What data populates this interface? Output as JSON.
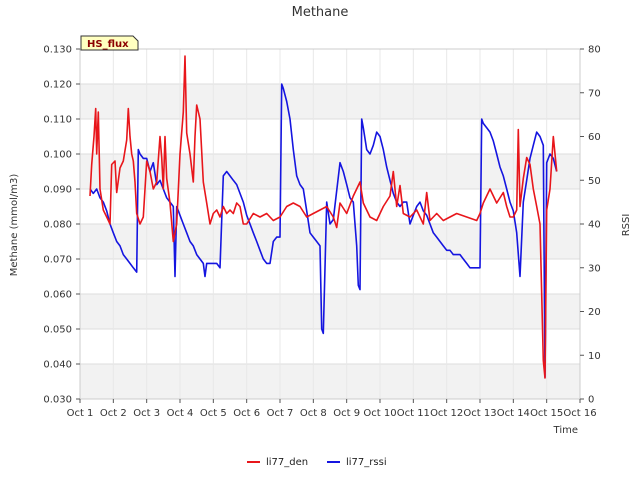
{
  "chart_data": {
    "type": "line",
    "title": "Methane",
    "badge": "HS_flux",
    "xlabel": "Time",
    "ylabel_left": "Methane (mmol/m3)",
    "ylabel_right": "RSSI",
    "xlim": [
      1,
      16
    ],
    "ylim_left": [
      0.03,
      0.13
    ],
    "ylim_right": [
      0,
      80
    ],
    "x_ticks": [
      1,
      2,
      3,
      4,
      5,
      6,
      7,
      8,
      9,
      10,
      11,
      12,
      13,
      14,
      15,
      16
    ],
    "x_tick_labels": [
      "Oct 1",
      "Oct 2",
      "Oct 3",
      "Oct 4",
      "Oct 5",
      "Oct 6",
      "Oct 7",
      "Oct 8",
      "Oct 9",
      "Oct 10",
      "Oct 11",
      "Oct 12",
      "Oct 13",
      "Oct 14",
      "Oct 15",
      "Oct 16"
    ],
    "y_ticks_left": [
      0.03,
      0.04,
      0.05,
      0.06,
      0.07,
      0.08,
      0.09,
      0.1,
      0.11,
      0.12,
      0.13
    ],
    "y_tick_labels_left": [
      "0.030",
      "0.040",
      "0.050",
      "0.060",
      "0.070",
      "0.080",
      "0.090",
      "0.100",
      "0.110",
      "0.120",
      "0.130"
    ],
    "y_ticks_right": [
      0,
      10,
      20,
      30,
      40,
      50,
      60,
      70,
      80
    ],
    "y_tick_labels_right": [
      "0",
      "10",
      "20",
      "30",
      "40",
      "50",
      "60",
      "70",
      "80"
    ],
    "grid": true,
    "legend_position": "bottom-center",
    "series": [
      {
        "name": "li77_den",
        "axis": "left",
        "color": "#e8161b",
        "points": [
          [
            1.3,
            0.088
          ],
          [
            1.35,
            0.097
          ],
          [
            1.42,
            0.105
          ],
          [
            1.47,
            0.113
          ],
          [
            1.5,
            0.1
          ],
          [
            1.55,
            0.112
          ],
          [
            1.6,
            0.09
          ],
          [
            1.7,
            0.084
          ],
          [
            1.8,
            0.082
          ],
          [
            1.9,
            0.08
          ],
          [
            1.95,
            0.097
          ],
          [
            2.05,
            0.098
          ],
          [
            2.1,
            0.089
          ],
          [
            2.2,
            0.096
          ],
          [
            2.3,
            0.098
          ],
          [
            2.4,
            0.104
          ],
          [
            2.45,
            0.113
          ],
          [
            2.5,
            0.105
          ],
          [
            2.55,
            0.1
          ],
          [
            2.6,
            0.098
          ],
          [
            2.65,
            0.092
          ],
          [
            2.7,
            0.083
          ],
          [
            2.8,
            0.08
          ],
          [
            2.9,
            0.082
          ],
          [
            3.0,
            0.098
          ],
          [
            3.1,
            0.095
          ],
          [
            3.2,
            0.09
          ],
          [
            3.3,
            0.092
          ],
          [
            3.4,
            0.105
          ],
          [
            3.45,
            0.099
          ],
          [
            3.5,
            0.09
          ],
          [
            3.55,
            0.105
          ],
          [
            3.6,
            0.093
          ],
          [
            3.7,
            0.086
          ],
          [
            3.8,
            0.075
          ],
          [
            3.9,
            0.08
          ],
          [
            4.0,
            0.1
          ],
          [
            4.1,
            0.112
          ],
          [
            4.15,
            0.128
          ],
          [
            4.2,
            0.106
          ],
          [
            4.3,
            0.1
          ],
          [
            4.4,
            0.092
          ],
          [
            4.45,
            0.105
          ],
          [
            4.5,
            0.114
          ],
          [
            4.6,
            0.11
          ],
          [
            4.7,
            0.092
          ],
          [
            4.8,
            0.086
          ],
          [
            4.9,
            0.08
          ],
          [
            5.0,
            0.083
          ],
          [
            5.1,
            0.084
          ],
          [
            5.2,
            0.082
          ],
          [
            5.3,
            0.085
          ],
          [
            5.4,
            0.083
          ],
          [
            5.5,
            0.084
          ],
          [
            5.6,
            0.083
          ],
          [
            5.7,
            0.086
          ],
          [
            5.8,
            0.085
          ],
          [
            5.9,
            0.08
          ],
          [
            6.0,
            0.08
          ],
          [
            6.2,
            0.083
          ],
          [
            6.4,
            0.082
          ],
          [
            6.6,
            0.083
          ],
          [
            6.8,
            0.081
          ],
          [
            7.0,
            0.082
          ],
          [
            7.2,
            0.085
          ],
          [
            7.4,
            0.086
          ],
          [
            7.6,
            0.085
          ],
          [
            7.8,
            0.082
          ],
          [
            8.0,
            0.083
          ],
          [
            8.2,
            0.084
          ],
          [
            8.4,
            0.085
          ],
          [
            8.6,
            0.082
          ],
          [
            8.7,
            0.079
          ],
          [
            8.8,
            0.086
          ],
          [
            9.0,
            0.083
          ],
          [
            9.2,
            0.088
          ],
          [
            9.4,
            0.092
          ],
          [
            9.5,
            0.086
          ],
          [
            9.7,
            0.082
          ],
          [
            9.9,
            0.081
          ],
          [
            10.1,
            0.085
          ],
          [
            10.3,
            0.088
          ],
          [
            10.4,
            0.095
          ],
          [
            10.5,
            0.085
          ],
          [
            10.6,
            0.091
          ],
          [
            10.7,
            0.083
          ],
          [
            10.9,
            0.082
          ],
          [
            11.1,
            0.084
          ],
          [
            11.3,
            0.08
          ],
          [
            11.4,
            0.089
          ],
          [
            11.5,
            0.081
          ],
          [
            11.7,
            0.083
          ],
          [
            11.9,
            0.081
          ],
          [
            12.1,
            0.082
          ],
          [
            12.3,
            0.083
          ],
          [
            12.6,
            0.082
          ],
          [
            12.9,
            0.081
          ],
          [
            13.0,
            0.083
          ],
          [
            13.1,
            0.086
          ],
          [
            13.3,
            0.09
          ],
          [
            13.5,
            0.086
          ],
          [
            13.7,
            0.089
          ],
          [
            13.8,
            0.085
          ],
          [
            13.9,
            0.082
          ],
          [
            14.0,
            0.082
          ],
          [
            14.1,
            0.084
          ],
          [
            14.15,
            0.107
          ],
          [
            14.2,
            0.085
          ],
          [
            14.3,
            0.093
          ],
          [
            14.4,
            0.099
          ],
          [
            14.5,
            0.097
          ],
          [
            14.6,
            0.09
          ],
          [
            14.7,
            0.085
          ],
          [
            14.8,
            0.08
          ],
          [
            14.9,
            0.041
          ],
          [
            14.95,
            0.036
          ],
          [
            15.0,
            0.084
          ],
          [
            15.1,
            0.09
          ],
          [
            15.2,
            0.105
          ],
          [
            15.3,
            0.095
          ]
        ]
      },
      {
        "name": "li77_rssi",
        "axis": "right",
        "color": "#1515e0",
        "points": [
          [
            1.3,
            48
          ],
          [
            1.4,
            47
          ],
          [
            1.5,
            48
          ],
          [
            1.6,
            46
          ],
          [
            1.7,
            45
          ],
          [
            1.8,
            43
          ],
          [
            1.9,
            40
          ],
          [
            2.0,
            38
          ],
          [
            2.1,
            36
          ],
          [
            2.2,
            35
          ],
          [
            2.3,
            33
          ],
          [
            2.4,
            32
          ],
          [
            2.5,
            31
          ],
          [
            2.6,
            30
          ],
          [
            2.7,
            29
          ],
          [
            2.75,
            57
          ],
          [
            2.8,
            56
          ],
          [
            2.9,
            55
          ],
          [
            3.0,
            55
          ],
          [
            3.1,
            52
          ],
          [
            3.2,
            54
          ],
          [
            3.3,
            49
          ],
          [
            3.4,
            50
          ],
          [
            3.5,
            48
          ],
          [
            3.6,
            46
          ],
          [
            3.7,
            45
          ],
          [
            3.8,
            44
          ],
          [
            3.85,
            28
          ],
          [
            3.9,
            44
          ],
          [
            4.0,
            42
          ],
          [
            4.1,
            40
          ],
          [
            4.2,
            38
          ],
          [
            4.3,
            36
          ],
          [
            4.4,
            35
          ],
          [
            4.5,
            33
          ],
          [
            4.6,
            32
          ],
          [
            4.7,
            31
          ],
          [
            4.75,
            28
          ],
          [
            4.8,
            31
          ],
          [
            4.9,
            31
          ],
          [
            5.0,
            31
          ],
          [
            5.1,
            31
          ],
          [
            5.2,
            30
          ],
          [
            5.3,
            51
          ],
          [
            5.4,
            52
          ],
          [
            5.5,
            51
          ],
          [
            5.6,
            50
          ],
          [
            5.7,
            49
          ],
          [
            5.8,
            47
          ],
          [
            5.9,
            45
          ],
          [
            6.0,
            42
          ],
          [
            6.1,
            40
          ],
          [
            6.2,
            38
          ],
          [
            6.3,
            36
          ],
          [
            6.4,
            34
          ],
          [
            6.5,
            32
          ],
          [
            6.6,
            31
          ],
          [
            6.7,
            31
          ],
          [
            6.8,
            36
          ],
          [
            6.9,
            37
          ],
          [
            7.0,
            37
          ],
          [
            7.05,
            72
          ],
          [
            7.1,
            71
          ],
          [
            7.2,
            68
          ],
          [
            7.3,
            64
          ],
          [
            7.4,
            57
          ],
          [
            7.5,
            51
          ],
          [
            7.6,
            49
          ],
          [
            7.7,
            48
          ],
          [
            7.8,
            43
          ],
          [
            7.9,
            38
          ],
          [
            8.0,
            37
          ],
          [
            8.1,
            36
          ],
          [
            8.2,
            35
          ],
          [
            8.25,
            16
          ],
          [
            8.3,
            15
          ],
          [
            8.4,
            45
          ],
          [
            8.5,
            40
          ],
          [
            8.6,
            41
          ],
          [
            8.8,
            54
          ],
          [
            8.9,
            52
          ],
          [
            9.0,
            49
          ],
          [
            9.1,
            46
          ],
          [
            9.2,
            45
          ],
          [
            9.3,
            35
          ],
          [
            9.35,
            26
          ],
          [
            9.4,
            25
          ],
          [
            9.45,
            64
          ],
          [
            9.5,
            62
          ],
          [
            9.6,
            57
          ],
          [
            9.7,
            56
          ],
          [
            9.8,
            58
          ],
          [
            9.9,
            61
          ],
          [
            10.0,
            60
          ],
          [
            10.1,
            57
          ],
          [
            10.2,
            53
          ],
          [
            10.3,
            50
          ],
          [
            10.4,
            47
          ],
          [
            10.5,
            45
          ],
          [
            10.6,
            44
          ],
          [
            10.7,
            45
          ],
          [
            10.8,
            45
          ],
          [
            10.9,
            40
          ],
          [
            11.0,
            42
          ],
          [
            11.1,
            44
          ],
          [
            11.2,
            45
          ],
          [
            11.3,
            43
          ],
          [
            11.4,
            42
          ],
          [
            11.5,
            40
          ],
          [
            11.6,
            38
          ],
          [
            11.7,
            37
          ],
          [
            11.8,
            36
          ],
          [
            11.9,
            35
          ],
          [
            12.0,
            34
          ],
          [
            12.1,
            34
          ],
          [
            12.2,
            33
          ],
          [
            12.3,
            33
          ],
          [
            12.4,
            33
          ],
          [
            12.5,
            32
          ],
          [
            12.6,
            31
          ],
          [
            12.7,
            30
          ],
          [
            12.8,
            30
          ],
          [
            12.9,
            30
          ],
          [
            13.0,
            30
          ],
          [
            13.05,
            64
          ],
          [
            13.1,
            63
          ],
          [
            13.2,
            62
          ],
          [
            13.3,
            61
          ],
          [
            13.4,
            59
          ],
          [
            13.5,
            56
          ],
          [
            13.6,
            53
          ],
          [
            13.7,
            51
          ],
          [
            13.8,
            48
          ],
          [
            13.9,
            45
          ],
          [
            14.0,
            43
          ],
          [
            14.1,
            38
          ],
          [
            14.2,
            28
          ],
          [
            14.3,
            45
          ],
          [
            14.4,
            50
          ],
          [
            14.5,
            55
          ],
          [
            14.6,
            58
          ],
          [
            14.7,
            61
          ],
          [
            14.8,
            60
          ],
          [
            14.9,
            58
          ],
          [
            14.95,
            5
          ],
          [
            15.0,
            54
          ],
          [
            15.1,
            56
          ],
          [
            15.2,
            55
          ],
          [
            15.3,
            52
          ]
        ]
      }
    ]
  }
}
